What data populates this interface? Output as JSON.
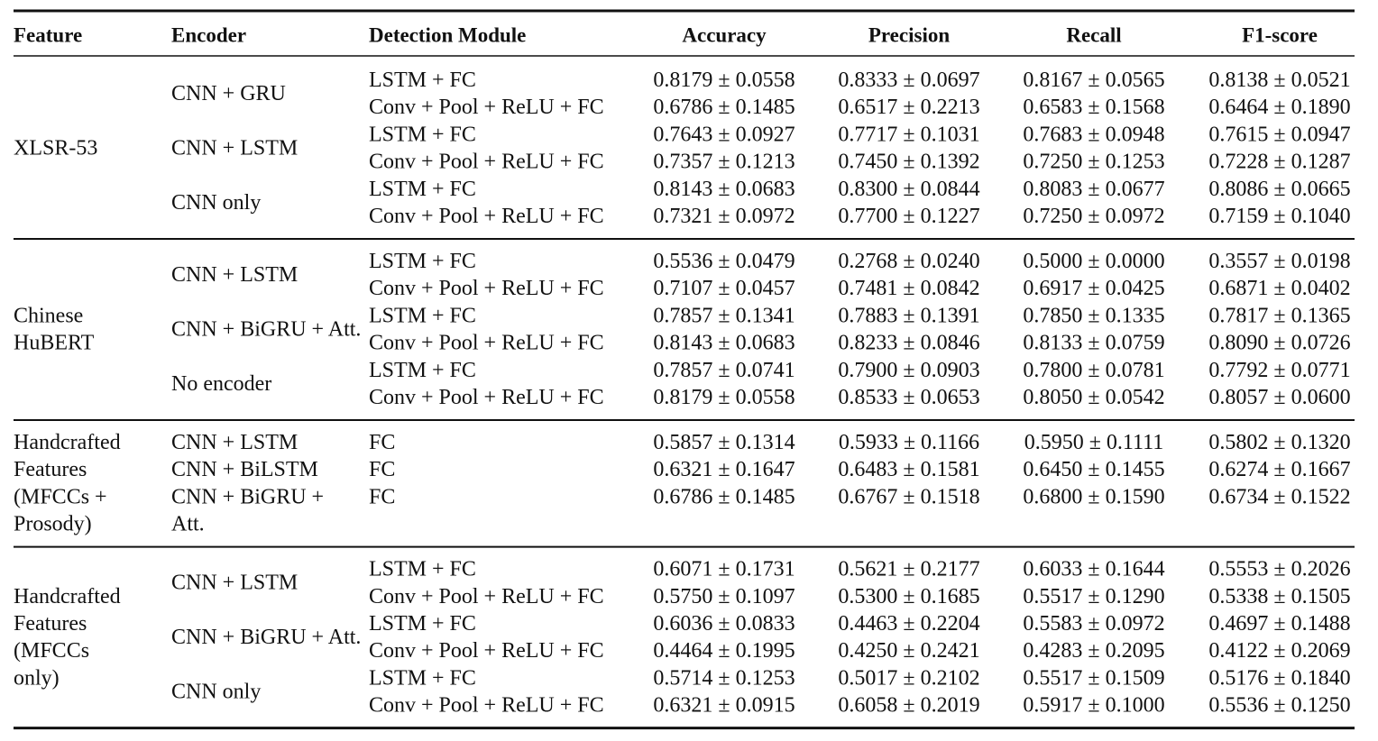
{
  "table": {
    "header": [
      "Feature",
      "Encoder",
      "Detection Module",
      "Accuracy",
      "Precision",
      "Recall",
      "F1-score"
    ],
    "groups": [
      {
        "feature": [
          "XLSR-53"
        ],
        "encoders": [
          {
            "name": [
              "CNN + GRU"
            ],
            "rows": [
              {
                "module": "LSTM + FC",
                "metrics": [
                  "0.8179 ± 0.0558",
                  "0.8333 ± 0.0697",
                  "0.8167 ± 0.0565",
                  "0.8138 ± 0.0521"
                ]
              },
              {
                "module": "Conv + Pool + ReLU + FC",
                "metrics": [
                  "0.6786 ± 0.1485",
                  "0.6517 ± 0.2213",
                  "0.6583 ± 0.1568",
                  "0.6464 ± 0.1890"
                ]
              }
            ]
          },
          {
            "name": [
              "CNN + LSTM"
            ],
            "rows": [
              {
                "module": "LSTM + FC",
                "metrics": [
                  "0.7643 ± 0.0927",
                  "0.7717 ± 0.1031",
                  "0.7683 ± 0.0948",
                  "0.7615 ± 0.0947"
                ]
              },
              {
                "module": "Conv + Pool + ReLU + FC",
                "metrics": [
                  "0.7357 ± 0.1213",
                  "0.7450 ± 0.1392",
                  "0.7250 ± 0.1253",
                  "0.7228 ± 0.1287"
                ]
              }
            ]
          },
          {
            "name": [
              "CNN only"
            ],
            "rows": [
              {
                "module": "LSTM + FC",
                "metrics": [
                  "0.8143 ± 0.0683",
                  "0.8300 ± 0.0844",
                  "0.8083 ± 0.0677",
                  "0.8086 ± 0.0665"
                ]
              },
              {
                "module": "Conv + Pool + ReLU + FC",
                "metrics": [
                  "0.7321 ± 0.0972",
                  "0.7700 ± 0.1227",
                  "0.7250 ± 0.0972",
                  "0.7159 ± 0.1040"
                ]
              }
            ]
          }
        ]
      },
      {
        "feature": [
          "Chinese",
          "HuBERT"
        ],
        "encoders": [
          {
            "name": [
              "CNN + LSTM"
            ],
            "rows": [
              {
                "module": "LSTM + FC",
                "metrics": [
                  "0.5536 ± 0.0479",
                  "0.2768 ± 0.0240",
                  "0.5000 ± 0.0000",
                  "0.3557 ± 0.0198"
                ]
              },
              {
                "module": "Conv + Pool + ReLU + FC",
                "metrics": [
                  "0.7107 ± 0.0457",
                  "0.7481 ± 0.0842",
                  "0.6917 ± 0.0425",
                  "0.6871 ± 0.0402"
                ]
              }
            ]
          },
          {
            "name": [
              "CNN + BiGRU + Att."
            ],
            "rows": [
              {
                "module": "LSTM + FC",
                "metrics": [
                  "0.7857 ± 0.1341",
                  "0.7883 ± 0.1391",
                  "0.7850 ± 0.1335",
                  "0.7817 ± 0.1365"
                ]
              },
              {
                "module": "Conv + Pool + ReLU + FC",
                "metrics": [
                  "0.8143 ± 0.0683",
                  "0.8233 ± 0.0846",
                  "0.8133 ± 0.0759",
                  "0.8090 ± 0.0726"
                ]
              }
            ]
          },
          {
            "name": [
              "No encoder"
            ],
            "rows": [
              {
                "module": "LSTM + FC",
                "metrics": [
                  "0.7857 ± 0.0741",
                  "0.7900 ± 0.0903",
                  "0.7800 ± 0.0781",
                  "0.7792 ± 0.0771"
                ]
              },
              {
                "module": "Conv + Pool + ReLU + FC",
                "metrics": [
                  "0.8179 ± 0.0558",
                  "0.8533 ± 0.0653",
                  "0.8050 ± 0.0542",
                  "0.8057 ± 0.0600"
                ]
              }
            ]
          }
        ]
      },
      {
        "feature": [
          "Handcrafted",
          "Features",
          "(MFCCs +",
          "Prosody)"
        ],
        "encoders": [
          {
            "name": [
              "CNN + LSTM"
            ],
            "rows": [
              {
                "module": "FC",
                "metrics": [
                  "0.5857 ± 0.1314",
                  "0.5933 ± 0.1166",
                  "0.5950 ± 0.1111",
                  "0.5802 ± 0.1320"
                ]
              }
            ]
          },
          {
            "name": [
              "CNN + BiLSTM"
            ],
            "rows": [
              {
                "module": "FC",
                "metrics": [
                  "0.6321 ± 0.1647",
                  "0.6483 ± 0.1581",
                  "0.6450 ± 0.1455",
                  "0.6274 ± 0.1667"
                ]
              }
            ]
          },
          {
            "name": [
              "CNN + BiGRU +",
              "Att."
            ],
            "rows": [
              {
                "module": "FC",
                "metrics": [
                  "0.6786 ± 0.1485",
                  "0.6767 ± 0.1518",
                  "0.6800 ± 0.1590",
                  "0.6734 ± 0.1522"
                ]
              }
            ]
          }
        ]
      },
      {
        "feature": [
          "Handcrafted",
          "Features",
          "(MFCCs",
          "only)"
        ],
        "encoders": [
          {
            "name": [
              "CNN + LSTM"
            ],
            "rows": [
              {
                "module": "LSTM + FC",
                "metrics": [
                  "0.6071 ± 0.1731",
                  "0.5621 ± 0.2177",
                  "0.6033 ± 0.1644",
                  "0.5553 ± 0.2026"
                ]
              },
              {
                "module": "Conv + Pool + ReLU + FC",
                "metrics": [
                  "0.5750 ± 0.1097",
                  "0.5300 ± 0.1685",
                  "0.5517 ± 0.1290",
                  "0.5338 ± 0.1505"
                ]
              }
            ]
          },
          {
            "name": [
              "CNN + BiGRU + Att."
            ],
            "rows": [
              {
                "module": "LSTM + FC",
                "metrics": [
                  "0.6036 ± 0.0833",
                  "0.4463 ± 0.2204",
                  "0.5583 ± 0.0972",
                  "0.4697 ± 0.1488"
                ]
              },
              {
                "module": "Conv + Pool + ReLU + FC",
                "metrics": [
                  "0.4464 ± 0.1995",
                  "0.4250 ± 0.2421",
                  "0.4283 ± 0.2095",
                  "0.4122 ± 0.2069"
                ]
              }
            ]
          },
          {
            "name": [
              "CNN only"
            ],
            "rows": [
              {
                "module": "LSTM + FC",
                "metrics": [
                  "0.5714 ± 0.1253",
                  "0.5017 ± 0.2102",
                  "0.5517 ± 0.1509",
                  "0.5176 ± 0.1840"
                ]
              },
              {
                "module": "Conv + Pool + ReLU + FC",
                "metrics": [
                  "0.6321 ± 0.0915",
                  "0.6058 ± 0.2019",
                  "0.5917 ± 0.1000",
                  "0.5536 ± 0.1250"
                ]
              }
            ]
          }
        ]
      }
    ]
  }
}
